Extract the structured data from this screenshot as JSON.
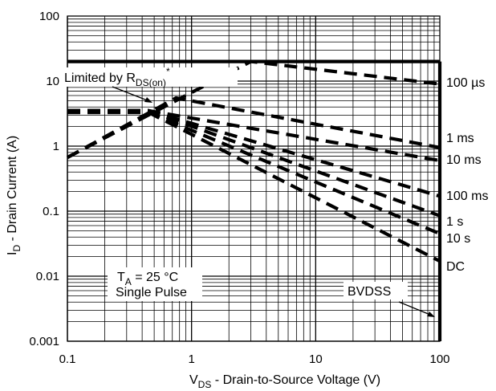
{
  "chart_data": {
    "type": "line",
    "scale": {
      "x": "log",
      "y": "log"
    },
    "xlim": [
      0.1,
      100
    ],
    "ylim": [
      0.001,
      100
    ],
    "x_ticks": [
      {
        "value": 0.1,
        "label": "0.1"
      },
      {
        "value": 1,
        "label": "1"
      },
      {
        "value": 10,
        "label": "10"
      },
      {
        "value": 100,
        "label": "100"
      }
    ],
    "y_ticks": [
      {
        "value": 100,
        "label": "100"
      },
      {
        "value": 10,
        "label": "10"
      },
      {
        "value": 1,
        "label": "1"
      },
      {
        "value": 0.1,
        "label": "0.1"
      },
      {
        "value": 0.01,
        "label": "0.01"
      },
      {
        "value": 0.001,
        "label": "0.001"
      }
    ],
    "xlabel": {
      "main": "V",
      "sub": "DS",
      "rest": " - Drain-to-Source Voltage (V)"
    },
    "ylabel": {
      "main": "I",
      "sub": "D",
      "rest": " - Drain Current (A)"
    },
    "grid": true,
    "current_limit": 20,
    "rdson_limit": {
      "x": [
        0.1,
        3
      ],
      "y": [
        0.67,
        20
      ]
    },
    "series": [
      {
        "name": "100 µs",
        "x": [
          0.1,
          3,
          100
        ],
        "y": [
          0.67,
          20,
          9
        ]
      },
      {
        "name": "1 ms",
        "x": [
          0.1,
          0.75,
          100
        ],
        "y": [
          0.67,
          5.5,
          0.95
        ]
      },
      {
        "name": "10 ms",
        "x": [
          0.1,
          0.45,
          100
        ],
        "y": [
          3.5,
          3.5,
          0.6
        ]
      },
      {
        "name": "100 ms",
        "x": [
          0.1,
          0.45,
          100
        ],
        "y": [
          3.5,
          3.5,
          0.17
        ]
      },
      {
        "name": "1 s",
        "x": [
          0.1,
          0.45,
          100
        ],
        "y": [
          3.5,
          3.5,
          0.085
        ]
      },
      {
        "name": "10 s",
        "x": [
          0.1,
          0.45,
          100
        ],
        "y": [
          3.3,
          3.3,
          0.045
        ]
      },
      {
        "name": "DC",
        "x": [
          0.1,
          0.45,
          100
        ],
        "y": [
          3.3,
          3.3,
          0.017
        ]
      }
    ],
    "bvdss": {
      "label": "BVDSS",
      "x": 100,
      "y": [
        0.001,
        20
      ]
    },
    "annotations": {
      "limited_by": {
        "text": "Limited by R",
        "sub": "DS(on)",
        "sup": "*"
      },
      "conditions": {
        "line1_main": "T",
        "line1_sub": "A",
        "line1_rest": " = 25 °C",
        "line2": "Single Pulse"
      }
    }
  }
}
